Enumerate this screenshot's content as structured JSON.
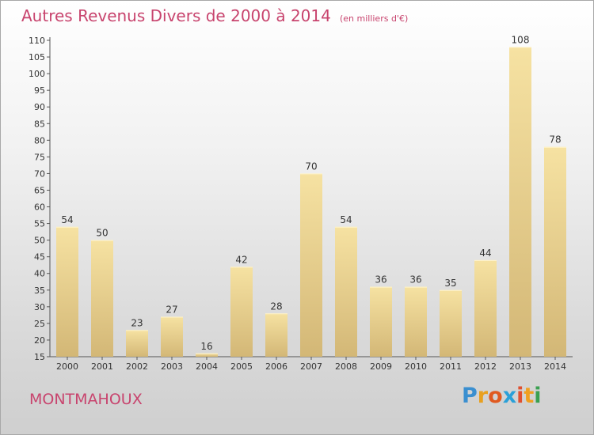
{
  "header": {
    "title": "Autres Revenus Divers de 2000 à 2014",
    "unit": "(en milliers d'€)"
  },
  "footer": {
    "town": "MONTMAHOUX",
    "logo_letters": [
      "P",
      "r",
      "o",
      "x",
      "i",
      "t",
      "i"
    ],
    "logo_colors": [
      "#3a8fd0",
      "#e8a020",
      "#e05a20",
      "#2aa0d8",
      "#e05030",
      "#f0a020",
      "#3aa050"
    ]
  },
  "colors": {
    "title": "#c8446e",
    "bar_light": "#f6e2a2",
    "bar_dark": "#d3b776",
    "axis": "#555555"
  },
  "chart_data": {
    "type": "bar",
    "title": "Autres Revenus Divers de 2000 à 2014",
    "subtitle": "(en milliers d'€)",
    "categories": [
      "2000",
      "2001",
      "2002",
      "2003",
      "2004",
      "2005",
      "2006",
      "2007",
      "2008",
      "2009",
      "2010",
      "2011",
      "2012",
      "2013",
      "2014"
    ],
    "values": [
      54,
      50,
      23,
      27,
      16,
      42,
      28,
      70,
      54,
      36,
      36,
      35,
      44,
      108,
      78
    ],
    "ylim": [
      15,
      110
    ],
    "yticks": [
      15,
      20,
      25,
      30,
      35,
      40,
      45,
      50,
      55,
      60,
      65,
      70,
      75,
      80,
      85,
      90,
      95,
      100,
      105,
      110
    ],
    "grid": false,
    "legend": "none"
  }
}
